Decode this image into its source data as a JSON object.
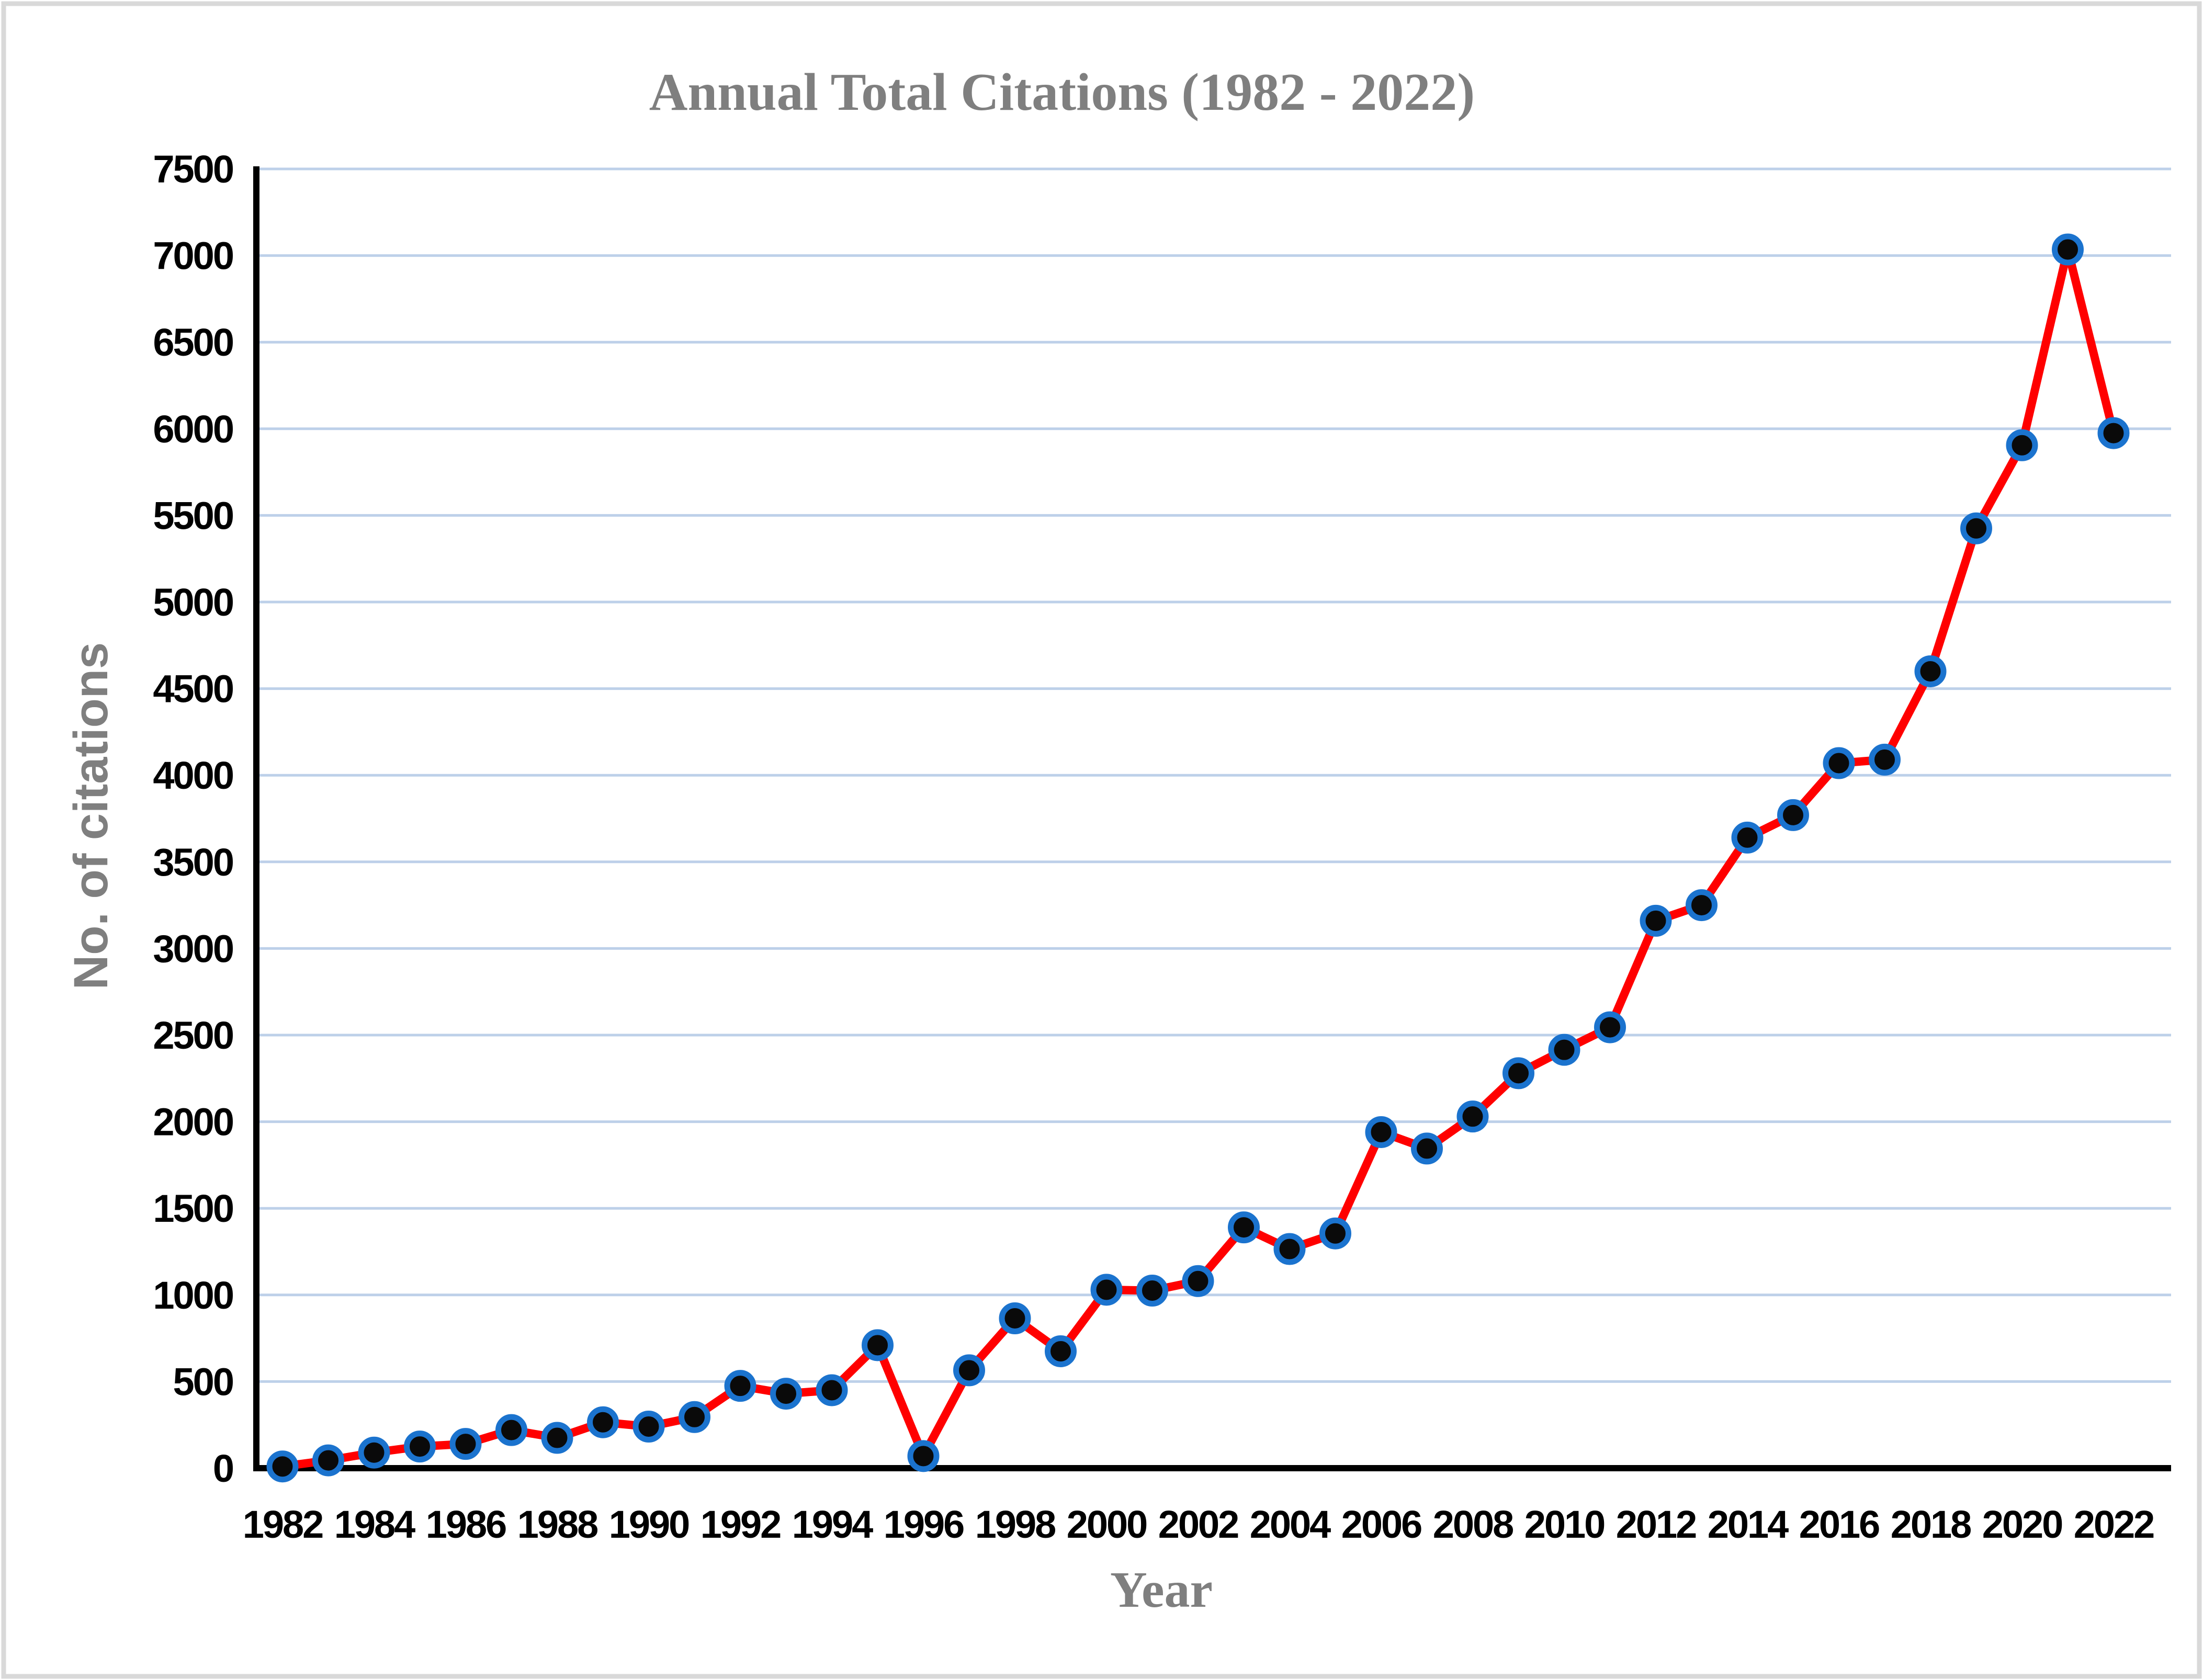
{
  "chart_data": {
    "type": "line",
    "title": "Annual Total Citations (1982 - 2022)",
    "xlabel": "Year",
    "ylabel": "No. of citations",
    "x": [
      1982,
      1983,
      1984,
      1985,
      1986,
      1987,
      1988,
      1989,
      1990,
      1991,
      1992,
      1993,
      1994,
      1995,
      1996,
      1997,
      1998,
      1999,
      2000,
      2001,
      2002,
      2003,
      2004,
      2005,
      2006,
      2007,
      2008,
      2009,
      2010,
      2011,
      2012,
      2013,
      2014,
      2015,
      2016,
      2017,
      2018,
      2019,
      2020,
      2021,
      2022
    ],
    "series": [
      {
        "name": "Annual total citations",
        "values": [
          10,
          45,
          90,
          125,
          140,
          220,
          175,
          265,
          240,
          295,
          475,
          430,
          450,
          710,
          70,
          565,
          865,
          675,
          1030,
          1025,
          1080,
          1390,
          1265,
          1355,
          1940,
          1845,
          2030,
          2280,
          2415,
          2545,
          3160,
          3250,
          3640,
          3770,
          4070,
          4090,
          4600,
          5425,
          5905,
          7035,
          5975
        ]
      }
    ],
    "ylim": [
      0,
      7500
    ],
    "ytick_step": 500,
    "xtick_step": 2,
    "ytick_labels": [
      "0",
      "500",
      "1000",
      "1500",
      "2000",
      "2500",
      "3000",
      "3500",
      "4000",
      "4500",
      "5000",
      "5500",
      "6000",
      "6500",
      "7000",
      "7500"
    ],
    "xtick_labels": [
      "1982",
      "1984",
      "1986",
      "1988",
      "1990",
      "1992",
      "1994",
      "1996",
      "1998",
      "2000",
      "2002",
      "2004",
      "2006",
      "2008",
      "2010",
      "2012",
      "2014",
      "2016",
      "2018",
      "2020",
      "2022"
    ],
    "grid": "horizontal",
    "legend": "none",
    "colors": {
      "line": "#ff0000",
      "marker_fill": "#0a0a0a",
      "marker_ring": "#1b73ce",
      "gridline": "#bdd0e9",
      "axis": "#000000",
      "heading_text": "#7f7f7f",
      "tick_text": "#000000",
      "frame_border": "#d9d9d9",
      "background": "#ffffff"
    }
  }
}
